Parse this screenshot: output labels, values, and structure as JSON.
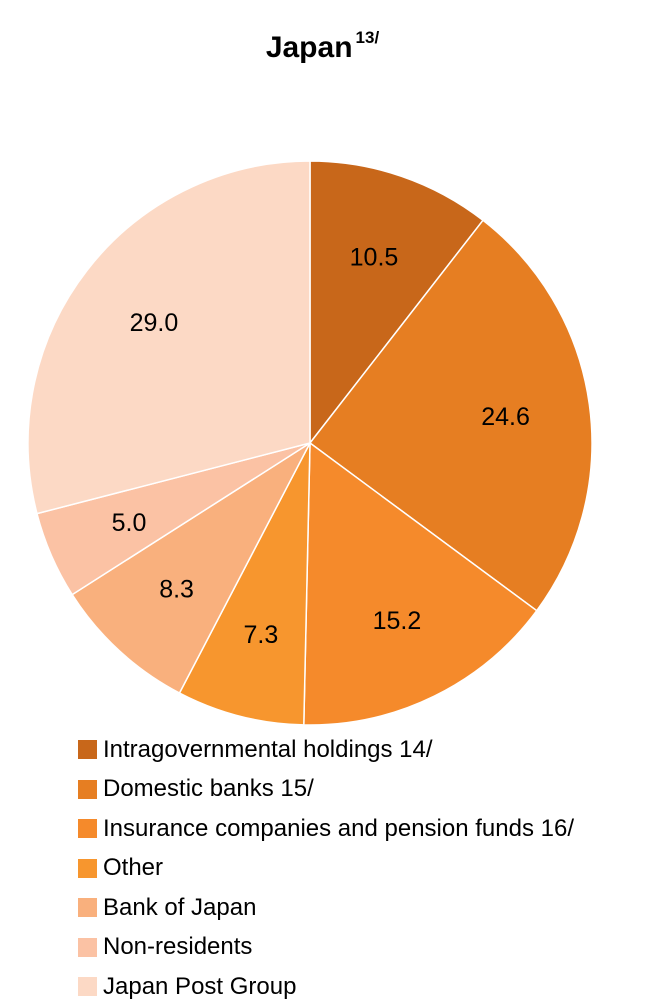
{
  "chart_data": {
    "type": "pie",
    "title": "Japan",
    "title_superscript": "13/",
    "slices": [
      {
        "label": "Intragovernmental holdings 14/",
        "value": 10.5,
        "display": "10.5",
        "color": "#c8671a"
      },
      {
        "label": "Domestic banks 15/",
        "value": 24.6,
        "display": "24.6",
        "color": "#e67e22"
      },
      {
        "label": "Insurance companies and pension funds 16/",
        "value": 15.2,
        "display": "15.2",
        "color": "#f58a2b"
      },
      {
        "label": "Other",
        "value": 7.3,
        "display": "7.3",
        "color": "#f7962e"
      },
      {
        "label": "Bank of Japan",
        "value": 8.3,
        "display": "8.3",
        "color": "#f9b07d"
      },
      {
        "label": "Non-residents",
        "value": 5.0,
        "display": "5.0",
        "color": "#fbc2a4"
      },
      {
        "label": "Japan Post Group",
        "value": 29.0,
        "display": "29.0",
        "color": "#fcd9c5"
      }
    ],
    "legend_position": "bottom"
  }
}
